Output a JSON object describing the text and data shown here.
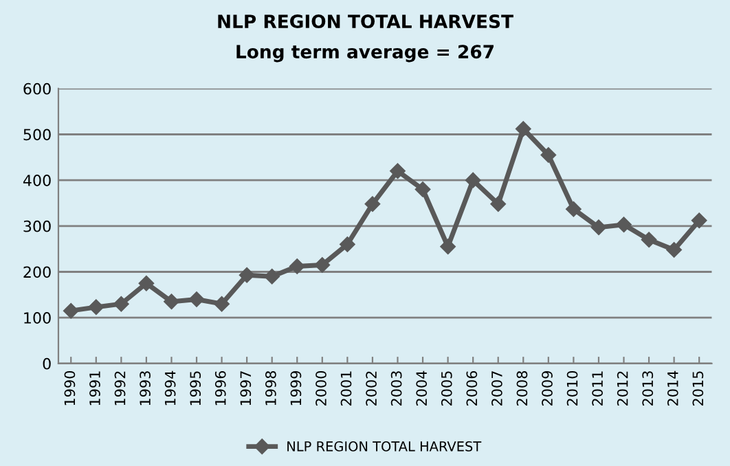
{
  "chart_data": {
    "type": "line",
    "title": "NLP REGION TOTAL HARVEST",
    "subtitle": "Long term average = 267",
    "categories": [
      "1990",
      "1991",
      "1992",
      "1993",
      "1994",
      "1995",
      "1996",
      "1997",
      "1998",
      "1999",
      "2000",
      "2001",
      "2002",
      "2003",
      "2004",
      "2005",
      "2006",
      "2007",
      "2008",
      "2009",
      "2010",
      "2011",
      "2012",
      "2013",
      "2014",
      "2015"
    ],
    "series": [
      {
        "name": "NLP REGION TOTAL HARVEST",
        "color": "#595959",
        "values": [
          115,
          123,
          130,
          175,
          135,
          140,
          130,
          193,
          190,
          212,
          215,
          260,
          348,
          420,
          380,
          255,
          400,
          348,
          512,
          455,
          337,
          297,
          303,
          270,
          248,
          312
        ]
      }
    ],
    "ylim": [
      0,
      600
    ],
    "yticks": [
      0,
      100,
      200,
      300,
      400,
      500,
      600
    ],
    "grid": "y",
    "legend": "bottom",
    "marker": "diamond",
    "line_style": "solid"
  }
}
